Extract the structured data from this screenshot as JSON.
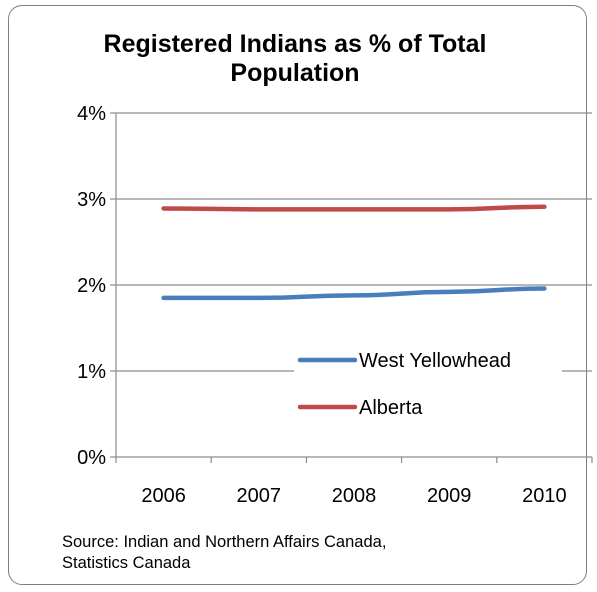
{
  "chart_data": {
    "type": "line",
    "title": "Registered Indians as % of Total Population",
    "xlabel": "",
    "ylabel": "",
    "x": [
      "2006",
      "2007",
      "2008",
      "2009",
      "2010"
    ],
    "ylim": [
      0,
      4
    ],
    "yticks": [
      0,
      1,
      2,
      3,
      4
    ],
    "ytick_labels": [
      "0%",
      "1%",
      "2%",
      "3%",
      "4%"
    ],
    "grid": "horizontal",
    "legend_position": "center-right",
    "series": [
      {
        "name": "West Yellowhead",
        "color": "#4a7ebb",
        "values": [
          1.85,
          1.85,
          1.88,
          1.92,
          1.96
        ]
      },
      {
        "name": "Alberta",
        "color": "#be4b48",
        "values": [
          2.89,
          2.88,
          2.88,
          2.88,
          2.91
        ]
      }
    ]
  },
  "source_note": {
    "line1": "Source: Indian and Northern Affairs Canada,",
    "line2": "Statistics Canada"
  }
}
